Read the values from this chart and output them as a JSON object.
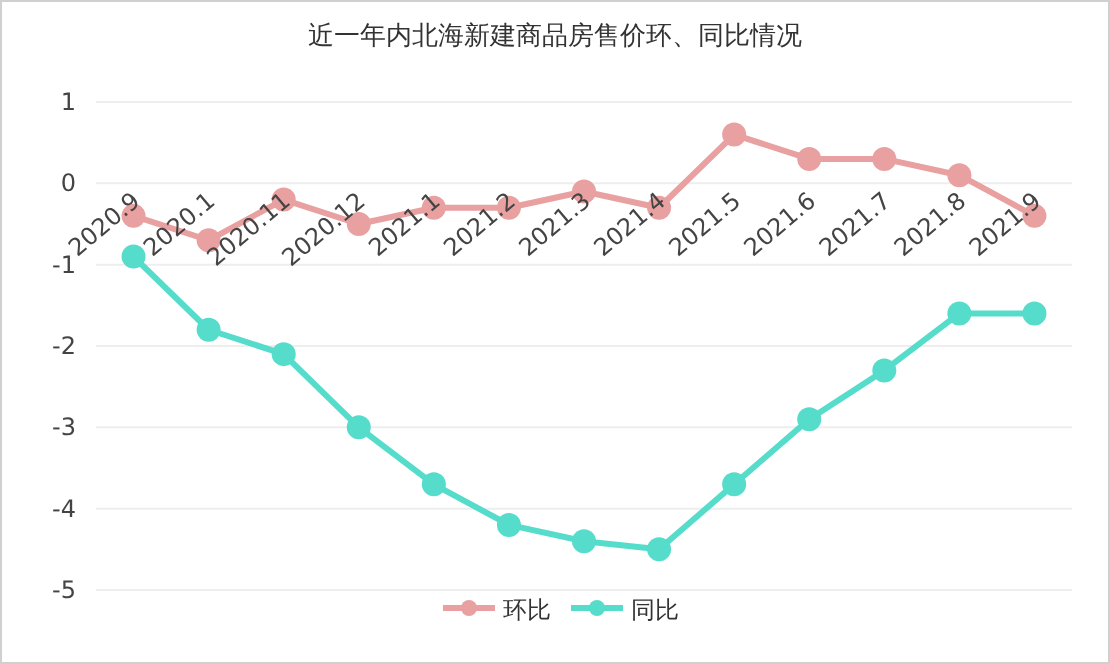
{
  "chart_data": {
    "type": "line",
    "title": "近一年内北海新建商品房售价环、同比情况",
    "categories": [
      "2020.9",
      "2020.1",
      "2020.11",
      "2020.12",
      "2021.1",
      "2021.2",
      "2021.3",
      "2021.4",
      "2021.5",
      "2021.6",
      "2021.7",
      "2021.8",
      "2021.9"
    ],
    "series": [
      {
        "name": "环比",
        "color": "#e8a0a0",
        "values": [
          -0.4,
          -0.7,
          -0.2,
          -0.5,
          -0.3,
          -0.3,
          -0.1,
          -0.3,
          0.6,
          0.3,
          0.3,
          0.1,
          -0.4
        ]
      },
      {
        "name": "同比",
        "color": "#55dccb",
        "values": [
          -0.9,
          -1.8,
          -2.1,
          -3.0,
          -3.7,
          -4.2,
          -4.4,
          -4.5,
          -3.7,
          -2.9,
          -2.3,
          -1.6,
          -1.6
        ]
      }
    ],
    "ylim": [
      -5,
      1
    ],
    "yticks": [
      -5,
      -4,
      -3,
      -2,
      -1,
      0,
      1
    ],
    "grid": "y",
    "legend": "bottom",
    "marker": "circle"
  }
}
